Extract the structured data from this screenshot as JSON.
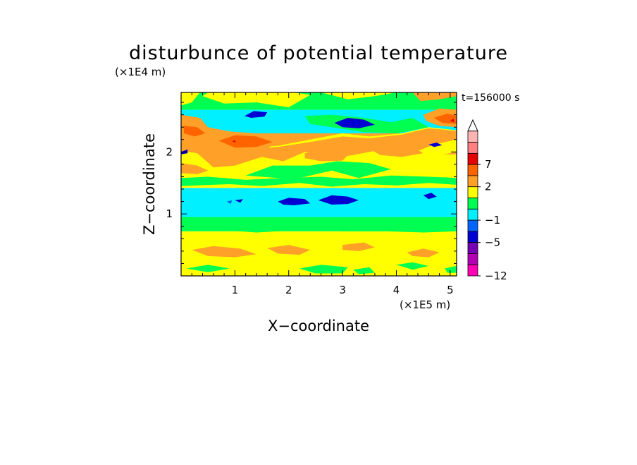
{
  "chart_data": {
    "type": "heatmap",
    "title": "disturbunce of potential temperature",
    "xlabel": "X−coordinate",
    "ylabel": "Z−coordinate",
    "x_unit": "(×1E5 m)",
    "y_unit": "(×1E4 m)",
    "time_label": "t=156000 s",
    "xlim": [
      0,
      5.12
    ],
    "ylim": [
      0,
      2.96
    ],
    "x_ticks": [
      "1",
      "2",
      "3",
      "4",
      "5"
    ],
    "y_ticks": [
      "1",
      "2"
    ],
    "colorbar": {
      "tick_labels": [
        "7",
        "2",
        "−1",
        "−5",
        "−12"
      ],
      "bins_top_to_bottom": [
        {
          "label": "",
          "color": "#ffffff"
        },
        {
          "label": "",
          "color": "#ffb4b4"
        },
        {
          "label": "",
          "color": "#ff8080"
        },
        {
          "label": "7",
          "color": "#e60000"
        },
        {
          "label": "",
          "color": "#ff6400"
        },
        {
          "label": "2",
          "color": "#ffa028"
        },
        {
          "label": "",
          "color": "#ffff00"
        },
        {
          "label": "",
          "color": "#00ff50"
        },
        {
          "label": "−1",
          "color": "#00f0ff"
        },
        {
          "label": "",
          "color": "#0064ff"
        },
        {
          "label": "−5",
          "color": "#0000d2"
        },
        {
          "label": "",
          "color": "#7800b4"
        },
        {
          "label": "",
          "color": "#b400b4"
        },
        {
          "label": "−12",
          "color": "#ff00b4"
        }
      ]
    },
    "bands": [
      {
        "z": [
          0.0,
          0.72
        ],
        "value": "yellow",
        "color": "#ffff00"
      },
      {
        "z": [
          0.72,
          0.95
        ],
        "value": "green",
        "color": "#00ff50"
      },
      {
        "z": [
          0.95,
          1.42
        ],
        "value": "cyan",
        "color": "#00f0ff"
      },
      {
        "z": [
          1.42,
          1.7
        ],
        "value": "yellow",
        "color": "#ffff00"
      },
      {
        "z": [
          1.7,
          1.96
        ],
        "value": "yellow",
        "color": "#ffff00"
      },
      {
        "z": [
          1.96,
          2.3
        ],
        "value": "orange",
        "color": "#ffa028"
      },
      {
        "z": [
          2.3,
          2.68
        ],
        "value": "cyan",
        "color": "#00f0ff"
      },
      {
        "z": [
          2.68,
          2.96
        ],
        "value": "green",
        "color": "#00ff50"
      }
    ]
  }
}
